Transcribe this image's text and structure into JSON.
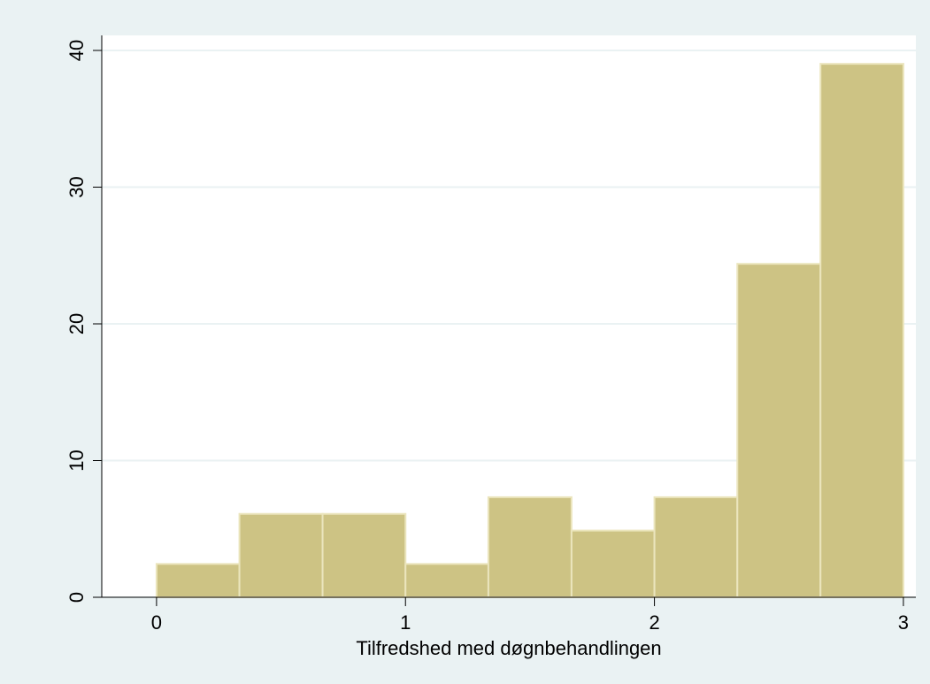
{
  "chart_data": {
    "type": "histogram",
    "x_label": "Tilfredshed med døgnbehandlingen",
    "bins": [
      0,
      0.333,
      0.667,
      1,
      1.333,
      1.667,
      2,
      2.333,
      2.667,
      3
    ],
    "values": [
      2.44,
      6.1,
      6.1,
      2.44,
      7.32,
      4.88,
      7.32,
      24.39,
      39.02
    ],
    "color": "#cdc384",
    "edge_color": "#ebe5bd",
    "xlim": [
      -0.22,
      3.05
    ],
    "xticks": [
      0,
      1,
      2,
      3
    ],
    "ylim": [
      0,
      41.1
    ],
    "yticks": [
      0,
      10,
      20,
      30,
      40
    ],
    "grid": true
  }
}
